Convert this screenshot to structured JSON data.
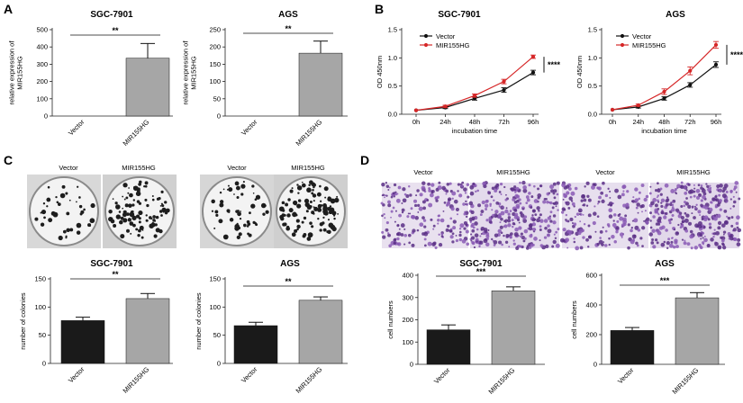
{
  "panels": {
    "A": {
      "letter": "A",
      "charts": [
        {
          "type": "bar",
          "title": "SGC-7901",
          "categories": [
            "Vector",
            "MIR155HG"
          ],
          "values": [
            0,
            335
          ],
          "errors": [
            0,
            85
          ],
          "ylabel_lines": [
            "relative expression of",
            "MIR155HG"
          ],
          "ylim": [
            0,
            500
          ],
          "yticks": [
            0,
            100,
            200,
            300,
            400,
            500
          ],
          "significance": "**",
          "colors": [
            "#1a1a1a",
            "#a6a6a6"
          ]
        },
        {
          "type": "bar",
          "title": "AGS",
          "categories": [
            "Vector",
            "MIR155HG"
          ],
          "values": [
            0,
            182
          ],
          "errors": [
            0,
            35
          ],
          "ylabel_lines": [
            "relative expression of",
            "MIR155HG"
          ],
          "ylim": [
            0,
            250
          ],
          "yticks": [
            0,
            50,
            100,
            150,
            200,
            250
          ],
          "significance": "**",
          "colors": [
            "#1a1a1a",
            "#a6a6a6"
          ]
        }
      ]
    },
    "B": {
      "letter": "B",
      "charts": [
        {
          "type": "line",
          "title": "SGC-7901",
          "categories": [
            "0h",
            "24h",
            "48h",
            "72h",
            "96h"
          ],
          "series": [
            {
              "name": "Vector",
              "color": "#111111",
              "values": [
                0.07,
                0.12,
                0.28,
                0.43,
                0.74
              ],
              "errors": [
                0.01,
                0.02,
                0.03,
                0.04,
                0.04
              ]
            },
            {
              "name": "MIR155HG",
              "color": "#d62728",
              "values": [
                0.07,
                0.14,
                0.33,
                0.58,
                1.02
              ],
              "errors": [
                0.01,
                0.02,
                0.03,
                0.04,
                0.03
              ]
            }
          ],
          "xlabel": "incubation time",
          "ylabel": "OD 450nm",
          "ylim": [
            0,
            1.5
          ],
          "yticks": [
            "0.0",
            "0.5",
            "1.0",
            "1.5"
          ],
          "significance": "****"
        },
        {
          "type": "line",
          "title": "AGS",
          "categories": [
            "0h",
            "24h",
            "48h",
            "72h",
            "96h"
          ],
          "series": [
            {
              "name": "Vector",
              "color": "#111111",
              "values": [
                0.08,
                0.13,
                0.28,
                0.52,
                0.88
              ],
              "errors": [
                0.01,
                0.02,
                0.03,
                0.04,
                0.05
              ]
            },
            {
              "name": "MIR155HG",
              "color": "#d62728",
              "values": [
                0.08,
                0.16,
                0.4,
                0.77,
                1.23
              ],
              "errors": [
                0.01,
                0.02,
                0.05,
                0.07,
                0.06
              ]
            }
          ],
          "xlabel": "incubation time",
          "ylabel": "OD 450nm",
          "ylim": [
            0,
            1.5
          ],
          "yticks": [
            "0.0",
            "0.5",
            "1.0",
            "1.5"
          ],
          "significance": "****"
        }
      ]
    },
    "C": {
      "letter": "C",
      "image_labels": [
        "Vector",
        "MIR155HG",
        "Vector",
        "MIR155HG"
      ],
      "charts": [
        {
          "type": "bar",
          "title": "SGC-7901",
          "categories": [
            "Vector",
            "MIR155HG"
          ],
          "values": [
            76,
            115
          ],
          "errors": [
            6,
            9
          ],
          "ylabel_lines": [
            "number of colonies"
          ],
          "ylim": [
            0,
            150
          ],
          "yticks": [
            0,
            50,
            100,
            150
          ],
          "significance": "**",
          "colors": [
            "#1a1a1a",
            "#a6a6a6"
          ]
        },
        {
          "type": "bar",
          "title": "AGS",
          "categories": [
            "Vector",
            "MIR155HG"
          ],
          "values": [
            67,
            112
          ],
          "errors": [
            6,
            6
          ],
          "ylabel_lines": [
            "number of colonies"
          ],
          "ylim": [
            0,
            150
          ],
          "yticks": [
            0,
            50,
            100,
            150
          ],
          "significance": "**",
          "colors": [
            "#1a1a1a",
            "#a6a6a6"
          ]
        }
      ]
    },
    "D": {
      "letter": "D",
      "image_labels": [
        "Vector",
        "MIR155HG",
        "Vector",
        "MIR155HG"
      ],
      "charts": [
        {
          "type": "bar",
          "title": "SGC-7901",
          "categories": [
            "Vector",
            "MIR155HG"
          ],
          "values": [
            155,
            330
          ],
          "errors": [
            22,
            18
          ],
          "ylabel_lines": [
            "cell numbers"
          ],
          "ylim": [
            0,
            400
          ],
          "yticks": [
            0,
            100,
            200,
            300,
            400
          ],
          "significance": "***",
          "colors": [
            "#1a1a1a",
            "#a6a6a6"
          ]
        },
        {
          "type": "bar",
          "title": "AGS",
          "categories": [
            "Vector",
            "MIR155HG"
          ],
          "values": [
            228,
            448
          ],
          "errors": [
            20,
            35
          ],
          "ylabel_lines": [
            "cell numbers"
          ],
          "ylim": [
            0,
            600
          ],
          "yticks": [
            0,
            200,
            400,
            600
          ],
          "significance": "***",
          "colors": [
            "#1a1a1a",
            "#a6a6a6"
          ]
        }
      ]
    }
  },
  "chart_data": [
    {
      "type": "bar",
      "title": "SGC-7901",
      "categories": [
        "Vector",
        "MIR155HG"
      ],
      "values": [
        0,
        335
      ],
      "ylabel": "relative expression of MIR155HG",
      "ylim": [
        0,
        500
      ]
    },
    {
      "type": "bar",
      "title": "AGS",
      "categories": [
        "Vector",
        "MIR155HG"
      ],
      "values": [
        0,
        182
      ],
      "ylabel": "relative expression of MIR155HG",
      "ylim": [
        0,
        250
      ]
    },
    {
      "type": "line",
      "title": "SGC-7901",
      "x": [
        "0h",
        "24h",
        "48h",
        "72h",
        "96h"
      ],
      "series": [
        {
          "name": "Vector",
          "values": [
            0.07,
            0.12,
            0.28,
            0.43,
            0.74
          ]
        },
        {
          "name": "MIR155HG",
          "values": [
            0.07,
            0.14,
            0.33,
            0.58,
            1.02
          ]
        }
      ],
      "xlabel": "incubation time",
      "ylabel": "OD 450nm",
      "ylim": [
        0,
        1.5
      ]
    },
    {
      "type": "line",
      "title": "AGS",
      "x": [
        "0h",
        "24h",
        "48h",
        "72h",
        "96h"
      ],
      "series": [
        {
          "name": "Vector",
          "values": [
            0.08,
            0.13,
            0.28,
            0.52,
            0.88
          ]
        },
        {
          "name": "MIR155HG",
          "values": [
            0.08,
            0.16,
            0.4,
            0.77,
            1.23
          ]
        }
      ],
      "xlabel": "incubation time",
      "ylabel": "OD 450nm",
      "ylim": [
        0,
        1.5
      ]
    },
    {
      "type": "bar",
      "title": "SGC-7901",
      "categories": [
        "Vector",
        "MIR155HG"
      ],
      "values": [
        76,
        115
      ],
      "ylabel": "number of colonies",
      "ylim": [
        0,
        150
      ]
    },
    {
      "type": "bar",
      "title": "AGS",
      "categories": [
        "Vector",
        "MIR155HG"
      ],
      "values": [
        67,
        112
      ],
      "ylabel": "number of colonies",
      "ylim": [
        0,
        150
      ]
    },
    {
      "type": "bar",
      "title": "SGC-7901",
      "categories": [
        "Vector",
        "MIR155HG"
      ],
      "values": [
        155,
        330
      ],
      "ylabel": "cell numbers",
      "ylim": [
        0,
        400
      ]
    },
    {
      "type": "bar",
      "title": "AGS",
      "categories": [
        "Vector",
        "MIR155HG"
      ],
      "values": [
        228,
        448
      ],
      "ylabel": "cell numbers",
      "ylim": [
        0,
        600
      ]
    }
  ]
}
